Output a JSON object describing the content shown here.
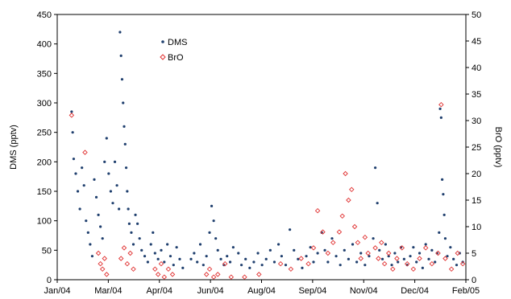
{
  "chart_data": {
    "type": "scatter",
    "title": "",
    "xlabel": "",
    "ylabel": "DMS (pptv)",
    "y2label": "BrO (pptv)",
    "x_tick_labels": [
      "Jan/04",
      "Mar/04",
      "Apr/04",
      "Jun/04",
      "Aug/04",
      "Sep/04",
      "Nov/04",
      "Dec/04",
      "Feb/05"
    ],
    "xlim": [
      "2004-01-01",
      "2005-02-01"
    ],
    "ylim": [
      0,
      450
    ],
    "y2lim": [
      0,
      50
    ],
    "y_ticks": [
      "0",
      "50",
      "100",
      "150",
      "200",
      "250",
      "300",
      "350",
      "400",
      "450"
    ],
    "y2_ticks": [
      "0",
      "5",
      "10",
      "15",
      "20",
      "25",
      "30",
      "35",
      "40",
      "45",
      "50"
    ],
    "grid": false,
    "legend_position": "top-center",
    "series": [
      {
        "name": "DMS",
        "axis": "left",
        "color": "#1f3f6e",
        "marker": "dot",
        "points": [
          [
            "2004-01-15",
            285
          ],
          [
            "2004-01-16",
            250
          ],
          [
            "2004-01-17",
            205
          ],
          [
            "2004-01-19",
            180
          ],
          [
            "2004-01-21",
            150
          ],
          [
            "2004-01-23",
            120
          ],
          [
            "2004-01-25",
            190
          ],
          [
            "2004-01-27",
            160
          ],
          [
            "2004-01-29",
            100
          ],
          [
            "2004-01-31",
            80
          ],
          [
            "2004-02-02",
            60
          ],
          [
            "2004-02-04",
            40
          ],
          [
            "2004-02-06",
            170
          ],
          [
            "2004-02-08",
            140
          ],
          [
            "2004-02-10",
            110
          ],
          [
            "2004-02-12",
            90
          ],
          [
            "2004-02-14",
            70
          ],
          [
            "2004-02-16",
            200
          ],
          [
            "2004-02-18",
            240
          ],
          [
            "2004-02-20",
            180
          ],
          [
            "2004-02-22",
            150
          ],
          [
            "2004-02-24",
            130
          ],
          [
            "2004-02-26",
            200
          ],
          [
            "2004-02-28",
            160
          ],
          [
            "2004-03-01",
            120
          ],
          [
            "2004-03-02",
            420
          ],
          [
            "2004-03-03",
            380
          ],
          [
            "2004-03-04",
            340
          ],
          [
            "2004-03-05",
            300
          ],
          [
            "2004-03-06",
            260
          ],
          [
            "2004-03-07",
            230
          ],
          [
            "2004-03-08",
            190
          ],
          [
            "2004-03-09",
            150
          ],
          [
            "2004-03-10",
            120
          ],
          [
            "2004-03-11",
            95
          ],
          [
            "2004-03-13",
            80
          ],
          [
            "2004-03-15",
            60
          ],
          [
            "2004-03-17",
            110
          ],
          [
            "2004-03-19",
            95
          ],
          [
            "2004-03-21",
            70
          ],
          [
            "2004-03-23",
            50
          ],
          [
            "2004-03-26",
            40
          ],
          [
            "2004-03-29",
            30
          ],
          [
            "2004-04-01",
            60
          ],
          [
            "2004-04-03",
            80
          ],
          [
            "2004-04-05",
            45
          ],
          [
            "2004-04-08",
            35
          ],
          [
            "2004-04-11",
            50
          ],
          [
            "2004-04-14",
            30
          ],
          [
            "2004-04-17",
            60
          ],
          [
            "2004-04-20",
            40
          ],
          [
            "2004-04-23",
            25
          ],
          [
            "2004-04-26",
            55
          ],
          [
            "2004-04-29",
            35
          ],
          [
            "2004-05-02",
            20
          ],
          [
            "2004-05-10",
            35
          ],
          [
            "2004-05-13",
            45
          ],
          [
            "2004-05-16",
            30
          ],
          [
            "2004-05-19",
            60
          ],
          [
            "2004-05-22",
            25
          ],
          [
            "2004-05-25",
            40
          ],
          [
            "2004-05-28",
            80
          ],
          [
            "2004-05-30",
            125
          ],
          [
            "2004-06-01",
            100
          ],
          [
            "2004-06-03",
            70
          ],
          [
            "2004-06-05",
            50
          ],
          [
            "2004-06-08",
            35
          ],
          [
            "2004-06-11",
            25
          ],
          [
            "2004-06-14",
            40
          ],
          [
            "2004-06-17",
            30
          ],
          [
            "2004-06-20",
            55
          ],
          [
            "2004-06-25",
            45
          ],
          [
            "2004-06-28",
            25
          ],
          [
            "2004-07-02",
            35
          ],
          [
            "2004-07-06",
            20
          ],
          [
            "2004-07-10",
            30
          ],
          [
            "2004-07-14",
            45
          ],
          [
            "2004-07-18",
            25
          ],
          [
            "2004-07-22",
            35
          ],
          [
            "2004-07-26",
            50
          ],
          [
            "2004-07-30",
            30
          ],
          [
            "2004-08-03",
            60
          ],
          [
            "2004-08-06",
            40
          ],
          [
            "2004-08-10",
            25
          ],
          [
            "2004-08-14",
            85
          ],
          [
            "2004-08-18",
            50
          ],
          [
            "2004-08-22",
            35
          ],
          [
            "2004-08-26",
            20
          ],
          [
            "2004-08-30",
            40
          ],
          [
            "2004-09-03",
            55
          ],
          [
            "2004-09-06",
            30
          ],
          [
            "2004-09-10",
            45
          ],
          [
            "2004-09-14",
            80
          ],
          [
            "2004-09-17",
            50
          ],
          [
            "2004-09-20",
            30
          ],
          [
            "2004-09-24",
            70
          ],
          [
            "2004-09-28",
            40
          ],
          [
            "2004-10-02",
            25
          ],
          [
            "2004-10-06",
            50
          ],
          [
            "2004-10-10",
            35
          ],
          [
            "2004-10-14",
            60
          ],
          [
            "2004-10-18",
            30
          ],
          [
            "2004-10-22",
            45
          ],
          [
            "2004-10-26",
            25
          ],
          [
            "2004-10-30",
            40
          ],
          [
            "2004-11-03",
            70
          ],
          [
            "2004-11-05",
            190
          ],
          [
            "2004-11-07",
            130
          ],
          [
            "2004-11-09",
            50
          ],
          [
            "2004-11-12",
            35
          ],
          [
            "2004-11-15",
            60
          ],
          [
            "2004-11-18",
            40
          ],
          [
            "2004-11-21",
            25
          ],
          [
            "2004-11-24",
            45
          ],
          [
            "2004-11-27",
            30
          ],
          [
            "2004-11-30",
            55
          ],
          [
            "2004-12-03",
            35
          ],
          [
            "2004-12-06",
            25
          ],
          [
            "2004-12-09",
            40
          ],
          [
            "2004-12-12",
            55
          ],
          [
            "2004-12-15",
            30
          ],
          [
            "2004-12-18",
            45
          ],
          [
            "2004-12-21",
            20
          ],
          [
            "2004-12-24",
            60
          ],
          [
            "2004-12-27",
            35
          ],
          [
            "2004-12-30",
            50
          ],
          [
            "2005-01-02",
            30
          ],
          [
            "2005-01-04",
            45
          ],
          [
            "2005-01-06",
            80
          ],
          [
            "2005-01-07",
            290
          ],
          [
            "2005-01-08",
            275
          ],
          [
            "2005-01-09",
            170
          ],
          [
            "2005-01-10",
            145
          ],
          [
            "2005-01-11",
            110
          ],
          [
            "2005-01-12",
            70
          ],
          [
            "2005-01-14",
            40
          ],
          [
            "2005-01-17",
            55
          ],
          [
            "2005-01-20",
            35
          ],
          [
            "2005-01-23",
            25
          ],
          [
            "2005-01-26",
            45
          ],
          [
            "2005-01-29",
            30
          ]
        ]
      },
      {
        "name": "BrO",
        "axis": "right",
        "color": "#e03030",
        "marker": "open-diamond",
        "points": [
          [
            "2004-01-15",
            31
          ],
          [
            "2004-01-28",
            24
          ],
          [
            "2004-02-10",
            5
          ],
          [
            "2004-02-12",
            3
          ],
          [
            "2004-02-14",
            2
          ],
          [
            "2004-02-16",
            4
          ],
          [
            "2004-02-18",
            1
          ],
          [
            "2004-03-03",
            4
          ],
          [
            "2004-03-06",
            6
          ],
          [
            "2004-03-09",
            3
          ],
          [
            "2004-03-12",
            5
          ],
          [
            "2004-03-15",
            2
          ],
          [
            "2004-04-05",
            2
          ],
          [
            "2004-04-08",
            1
          ],
          [
            "2004-04-11",
            3
          ],
          [
            "2004-04-14",
            0.5
          ],
          [
            "2004-04-18",
            2
          ],
          [
            "2004-04-22",
            1
          ],
          [
            "2004-05-25",
            1
          ],
          [
            "2004-05-28",
            2
          ],
          [
            "2004-06-01",
            0.5
          ],
          [
            "2004-06-05",
            1
          ],
          [
            "2004-06-12",
            3
          ],
          [
            "2004-06-18",
            0.5
          ],
          [
            "2004-07-01",
            0.5
          ],
          [
            "2004-07-15",
            1
          ],
          [
            "2004-08-05",
            3
          ],
          [
            "2004-08-15",
            2
          ],
          [
            "2004-08-25",
            4
          ],
          [
            "2004-09-01",
            3
          ],
          [
            "2004-09-06",
            6
          ],
          [
            "2004-09-10",
            13
          ],
          [
            "2004-09-15",
            9
          ],
          [
            "2004-09-20",
            5
          ],
          [
            "2004-09-25",
            7
          ],
          [
            "2004-10-01",
            9
          ],
          [
            "2004-10-04",
            12
          ],
          [
            "2004-10-07",
            20
          ],
          [
            "2004-10-10",
            15
          ],
          [
            "2004-10-13",
            17
          ],
          [
            "2004-10-16",
            10
          ],
          [
            "2004-10-19",
            7
          ],
          [
            "2004-10-22",
            4
          ],
          [
            "2004-10-26",
            8
          ],
          [
            "2004-10-29",
            5
          ],
          [
            "2004-11-05",
            6
          ],
          [
            "2004-11-08",
            4
          ],
          [
            "2004-11-11",
            7
          ],
          [
            "2004-11-14",
            3
          ],
          [
            "2004-11-18",
            5
          ],
          [
            "2004-11-22",
            2
          ],
          [
            "2004-11-26",
            4
          ],
          [
            "2004-12-01",
            6
          ],
          [
            "2004-12-06",
            3
          ],
          [
            "2004-12-12",
            2
          ],
          [
            "2004-12-18",
            4
          ],
          [
            "2004-12-24",
            6
          ],
          [
            "2004-12-30",
            3
          ],
          [
            "2005-01-05",
            5
          ],
          [
            "2005-01-08",
            33
          ],
          [
            "2005-01-12",
            4
          ],
          [
            "2005-01-18",
            2
          ],
          [
            "2005-01-24",
            5
          ],
          [
            "2005-01-29",
            3
          ]
        ]
      }
    ]
  }
}
